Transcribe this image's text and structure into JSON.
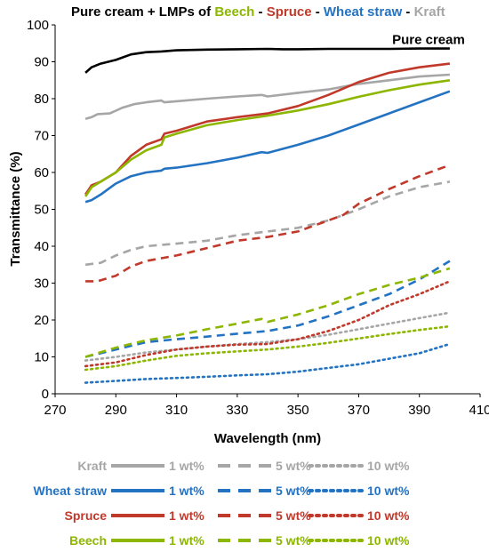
{
  "chart_data": {
    "type": "line",
    "title": {
      "prefix": "Pure cream + LMPs of ",
      "parts": [
        {
          "text": "Beech",
          "color": "#8DB600"
        },
        {
          "text": " - ",
          "color": "#000000"
        },
        {
          "text": "Spruce",
          "color": "#C0392B"
        },
        {
          "text": " - ",
          "color": "#000000"
        },
        {
          "text": "Wheat straw",
          "color": "#2473C2"
        },
        {
          "text": " - ",
          "color": "#000000"
        },
        {
          "text": "Kraft",
          "color": "#A6A6A6"
        }
      ]
    },
    "xlabel": "Wavelength (nm)",
    "ylabel": "Transmittance (%)",
    "xlim": [
      270,
      410
    ],
    "ylim": [
      0,
      100
    ],
    "xticks": [
      270,
      290,
      310,
      330,
      350,
      370,
      390,
      410
    ],
    "yticks": [
      0,
      10,
      20,
      30,
      40,
      50,
      60,
      70,
      80,
      90,
      100
    ],
    "annotation": {
      "text": "Pure cream",
      "x": 393,
      "y": 96
    },
    "colors": {
      "pure": "#000000",
      "kraft": "#A6A6A6",
      "wheat": "#2473C2",
      "spruce": "#C0392B",
      "beech": "#8DB600"
    },
    "series": [
      {
        "name": "Pure cream",
        "material": "pure",
        "style": "solid",
        "points": [
          [
            280,
            87
          ],
          [
            282,
            88.5
          ],
          [
            285,
            89.5
          ],
          [
            290,
            90.5
          ],
          [
            295,
            92
          ],
          [
            300,
            92.6
          ],
          [
            305,
            92.8
          ],
          [
            310,
            93.1
          ],
          [
            320,
            93.3
          ],
          [
            330,
            93.4
          ],
          [
            340,
            93.5
          ],
          [
            345,
            93.4
          ],
          [
            350,
            93.4
          ],
          [
            360,
            93.5
          ],
          [
            370,
            93.5
          ],
          [
            380,
            93.5
          ],
          [
            390,
            93.6
          ],
          [
            400,
            93.6
          ]
        ]
      },
      {
        "name": "Kraft 1 wt%",
        "material": "kraft",
        "style": "solid",
        "points": [
          [
            280,
            74.5
          ],
          [
            282,
            75
          ],
          [
            284,
            75.8
          ],
          [
            288,
            76
          ],
          [
            292,
            77.5
          ],
          [
            296,
            78.5
          ],
          [
            300,
            79
          ],
          [
            305,
            79.5
          ],
          [
            306,
            79
          ],
          [
            310,
            79.3
          ],
          [
            320,
            80
          ],
          [
            330,
            80.6
          ],
          [
            338,
            81
          ],
          [
            340,
            80.6
          ],
          [
            350,
            81.6
          ],
          [
            360,
            82.5
          ],
          [
            370,
            84
          ],
          [
            380,
            85
          ],
          [
            390,
            86
          ],
          [
            400,
            86.5
          ]
        ]
      },
      {
        "name": "Kraft 5 wt%",
        "material": "kraft",
        "style": "dashed",
        "points": [
          [
            280,
            35
          ],
          [
            285,
            35.5
          ],
          [
            290,
            37.5
          ],
          [
            295,
            39
          ],
          [
            300,
            40
          ],
          [
            310,
            40.7
          ],
          [
            320,
            41.5
          ],
          [
            330,
            43
          ],
          [
            340,
            44
          ],
          [
            350,
            45
          ],
          [
            360,
            47
          ],
          [
            370,
            50
          ],
          [
            380,
            53.5
          ],
          [
            390,
            56
          ],
          [
            400,
            57.5
          ]
        ]
      },
      {
        "name": "Kraft 10 wt%",
        "material": "kraft",
        "style": "dotted",
        "points": [
          [
            280,
            9
          ],
          [
            290,
            10
          ],
          [
            300,
            11.2
          ],
          [
            310,
            12
          ],
          [
            320,
            12.8
          ],
          [
            330,
            13.5
          ],
          [
            340,
            14
          ],
          [
            350,
            14.8
          ],
          [
            360,
            16
          ],
          [
            370,
            17.5
          ],
          [
            380,
            19
          ],
          [
            390,
            20.5
          ],
          [
            400,
            22
          ]
        ]
      },
      {
        "name": "Wheat straw 1 wt%",
        "material": "wheat",
        "style": "solid",
        "points": [
          [
            280,
            52
          ],
          [
            282,
            52.5
          ],
          [
            285,
            54
          ],
          [
            290,
            57
          ],
          [
            295,
            59
          ],
          [
            300,
            60
          ],
          [
            305,
            60.5
          ],
          [
            306,
            61
          ],
          [
            310,
            61.3
          ],
          [
            320,
            62.5
          ],
          [
            330,
            64
          ],
          [
            338,
            65.5
          ],
          [
            340,
            65.3
          ],
          [
            350,
            67.5
          ],
          [
            360,
            70
          ],
          [
            370,
            73
          ],
          [
            380,
            76
          ],
          [
            390,
            79
          ],
          [
            400,
            82
          ]
        ]
      },
      {
        "name": "Wheat straw 5 wt%",
        "material": "wheat",
        "style": "dashed",
        "points": [
          [
            280,
            10
          ],
          [
            290,
            12
          ],
          [
            300,
            14
          ],
          [
            310,
            14.8
          ],
          [
            320,
            15.5
          ],
          [
            330,
            16.3
          ],
          [
            340,
            17
          ],
          [
            350,
            18.5
          ],
          [
            360,
            21
          ],
          [
            370,
            24
          ],
          [
            380,
            27
          ],
          [
            390,
            31
          ],
          [
            400,
            36
          ]
        ]
      },
      {
        "name": "Wheat straw 10 wt%",
        "material": "wheat",
        "style": "dotted",
        "points": [
          [
            280,
            3
          ],
          [
            290,
            3.5
          ],
          [
            300,
            4
          ],
          [
            310,
            4.3
          ],
          [
            320,
            4.6
          ],
          [
            330,
            5
          ],
          [
            340,
            5.3
          ],
          [
            350,
            6
          ],
          [
            360,
            7
          ],
          [
            370,
            8
          ],
          [
            380,
            9.5
          ],
          [
            390,
            11
          ],
          [
            400,
            13.5
          ]
        ]
      },
      {
        "name": "Spruce 1 wt%",
        "material": "spruce",
        "style": "solid",
        "points": [
          [
            280,
            54
          ],
          [
            282,
            56.5
          ],
          [
            285,
            57.5
          ],
          [
            290,
            60
          ],
          [
            295,
            64.5
          ],
          [
            300,
            67.5
          ],
          [
            305,
            69
          ],
          [
            306,
            70.5
          ],
          [
            310,
            71.3
          ],
          [
            320,
            73.8
          ],
          [
            330,
            75
          ],
          [
            340,
            76
          ],
          [
            350,
            78
          ],
          [
            360,
            81
          ],
          [
            370,
            84.5
          ],
          [
            380,
            87
          ],
          [
            390,
            88.5
          ],
          [
            400,
            89.5
          ]
        ]
      },
      {
        "name": "Spruce 5 wt%",
        "material": "spruce",
        "style": "dashed",
        "points": [
          [
            280,
            30.5
          ],
          [
            284,
            30.5
          ],
          [
            290,
            32
          ],
          [
            295,
            34.5
          ],
          [
            300,
            36
          ],
          [
            310,
            37.5
          ],
          [
            320,
            39.5
          ],
          [
            330,
            41.5
          ],
          [
            340,
            42.5
          ],
          [
            350,
            44
          ],
          [
            360,
            47
          ],
          [
            365,
            48.5
          ],
          [
            370,
            51.5
          ],
          [
            380,
            55.5
          ],
          [
            390,
            59
          ],
          [
            400,
            62
          ]
        ]
      },
      {
        "name": "Spruce 10 wt%",
        "material": "spruce",
        "style": "dotted",
        "points": [
          [
            280,
            7.5
          ],
          [
            290,
            8.5
          ],
          [
            300,
            10.5
          ],
          [
            310,
            12
          ],
          [
            320,
            12.8
          ],
          [
            330,
            13.3
          ],
          [
            340,
            13.5
          ],
          [
            350,
            14.8
          ],
          [
            360,
            17
          ],
          [
            370,
            20
          ],
          [
            380,
            24
          ],
          [
            390,
            27
          ],
          [
            400,
            30.5
          ]
        ]
      },
      {
        "name": "Beech 1 wt%",
        "material": "beech",
        "style": "solid",
        "points": [
          [
            280,
            53.5
          ],
          [
            282,
            56
          ],
          [
            285,
            57.5
          ],
          [
            290,
            60
          ],
          [
            295,
            63.5
          ],
          [
            300,
            66
          ],
          [
            305,
            67.5
          ],
          [
            306,
            69.5
          ],
          [
            310,
            70.5
          ],
          [
            320,
            72.8
          ],
          [
            330,
            74.2
          ],
          [
            340,
            75.4
          ],
          [
            350,
            76.8
          ],
          [
            360,
            78.5
          ],
          [
            370,
            80.5
          ],
          [
            380,
            82.3
          ],
          [
            390,
            83.8
          ],
          [
            400,
            85
          ]
        ]
      },
      {
        "name": "Beech 5 wt%",
        "material": "beech",
        "style": "dashed",
        "points": [
          [
            280,
            10
          ],
          [
            290,
            12.5
          ],
          [
            300,
            14.5
          ],
          [
            310,
            15.8
          ],
          [
            320,
            17.5
          ],
          [
            330,
            19
          ],
          [
            338,
            20.3
          ],
          [
            340,
            19.5
          ],
          [
            350,
            21.5
          ],
          [
            360,
            24
          ],
          [
            370,
            27
          ],
          [
            380,
            29.5
          ],
          [
            390,
            31.5
          ],
          [
            400,
            34
          ]
        ]
      },
      {
        "name": "Beech 10 wt%",
        "material": "beech",
        "style": "dotted",
        "points": [
          [
            280,
            6.5
          ],
          [
            290,
            7.5
          ],
          [
            300,
            9
          ],
          [
            310,
            10.3
          ],
          [
            320,
            11
          ],
          [
            330,
            11.5
          ],
          [
            340,
            12
          ],
          [
            350,
            12.8
          ],
          [
            360,
            13.8
          ],
          [
            370,
            15
          ],
          [
            380,
            16.2
          ],
          [
            390,
            17.3
          ],
          [
            400,
            18.3
          ]
        ]
      }
    ],
    "legend": {
      "rows": [
        {
          "label": "Kraft",
          "material": "kraft"
        },
        {
          "label": "Wheat straw",
          "material": "wheat"
        },
        {
          "label": "Spruce",
          "material": "spruce"
        },
        {
          "label": "Beech",
          "material": "beech"
        }
      ],
      "columns": [
        {
          "label": "1 wt%",
          "style": "solid"
        },
        {
          "label": "5 wt%",
          "style": "dashed"
        },
        {
          "label": "10 wt%",
          "style": "dotted"
        }
      ]
    }
  }
}
